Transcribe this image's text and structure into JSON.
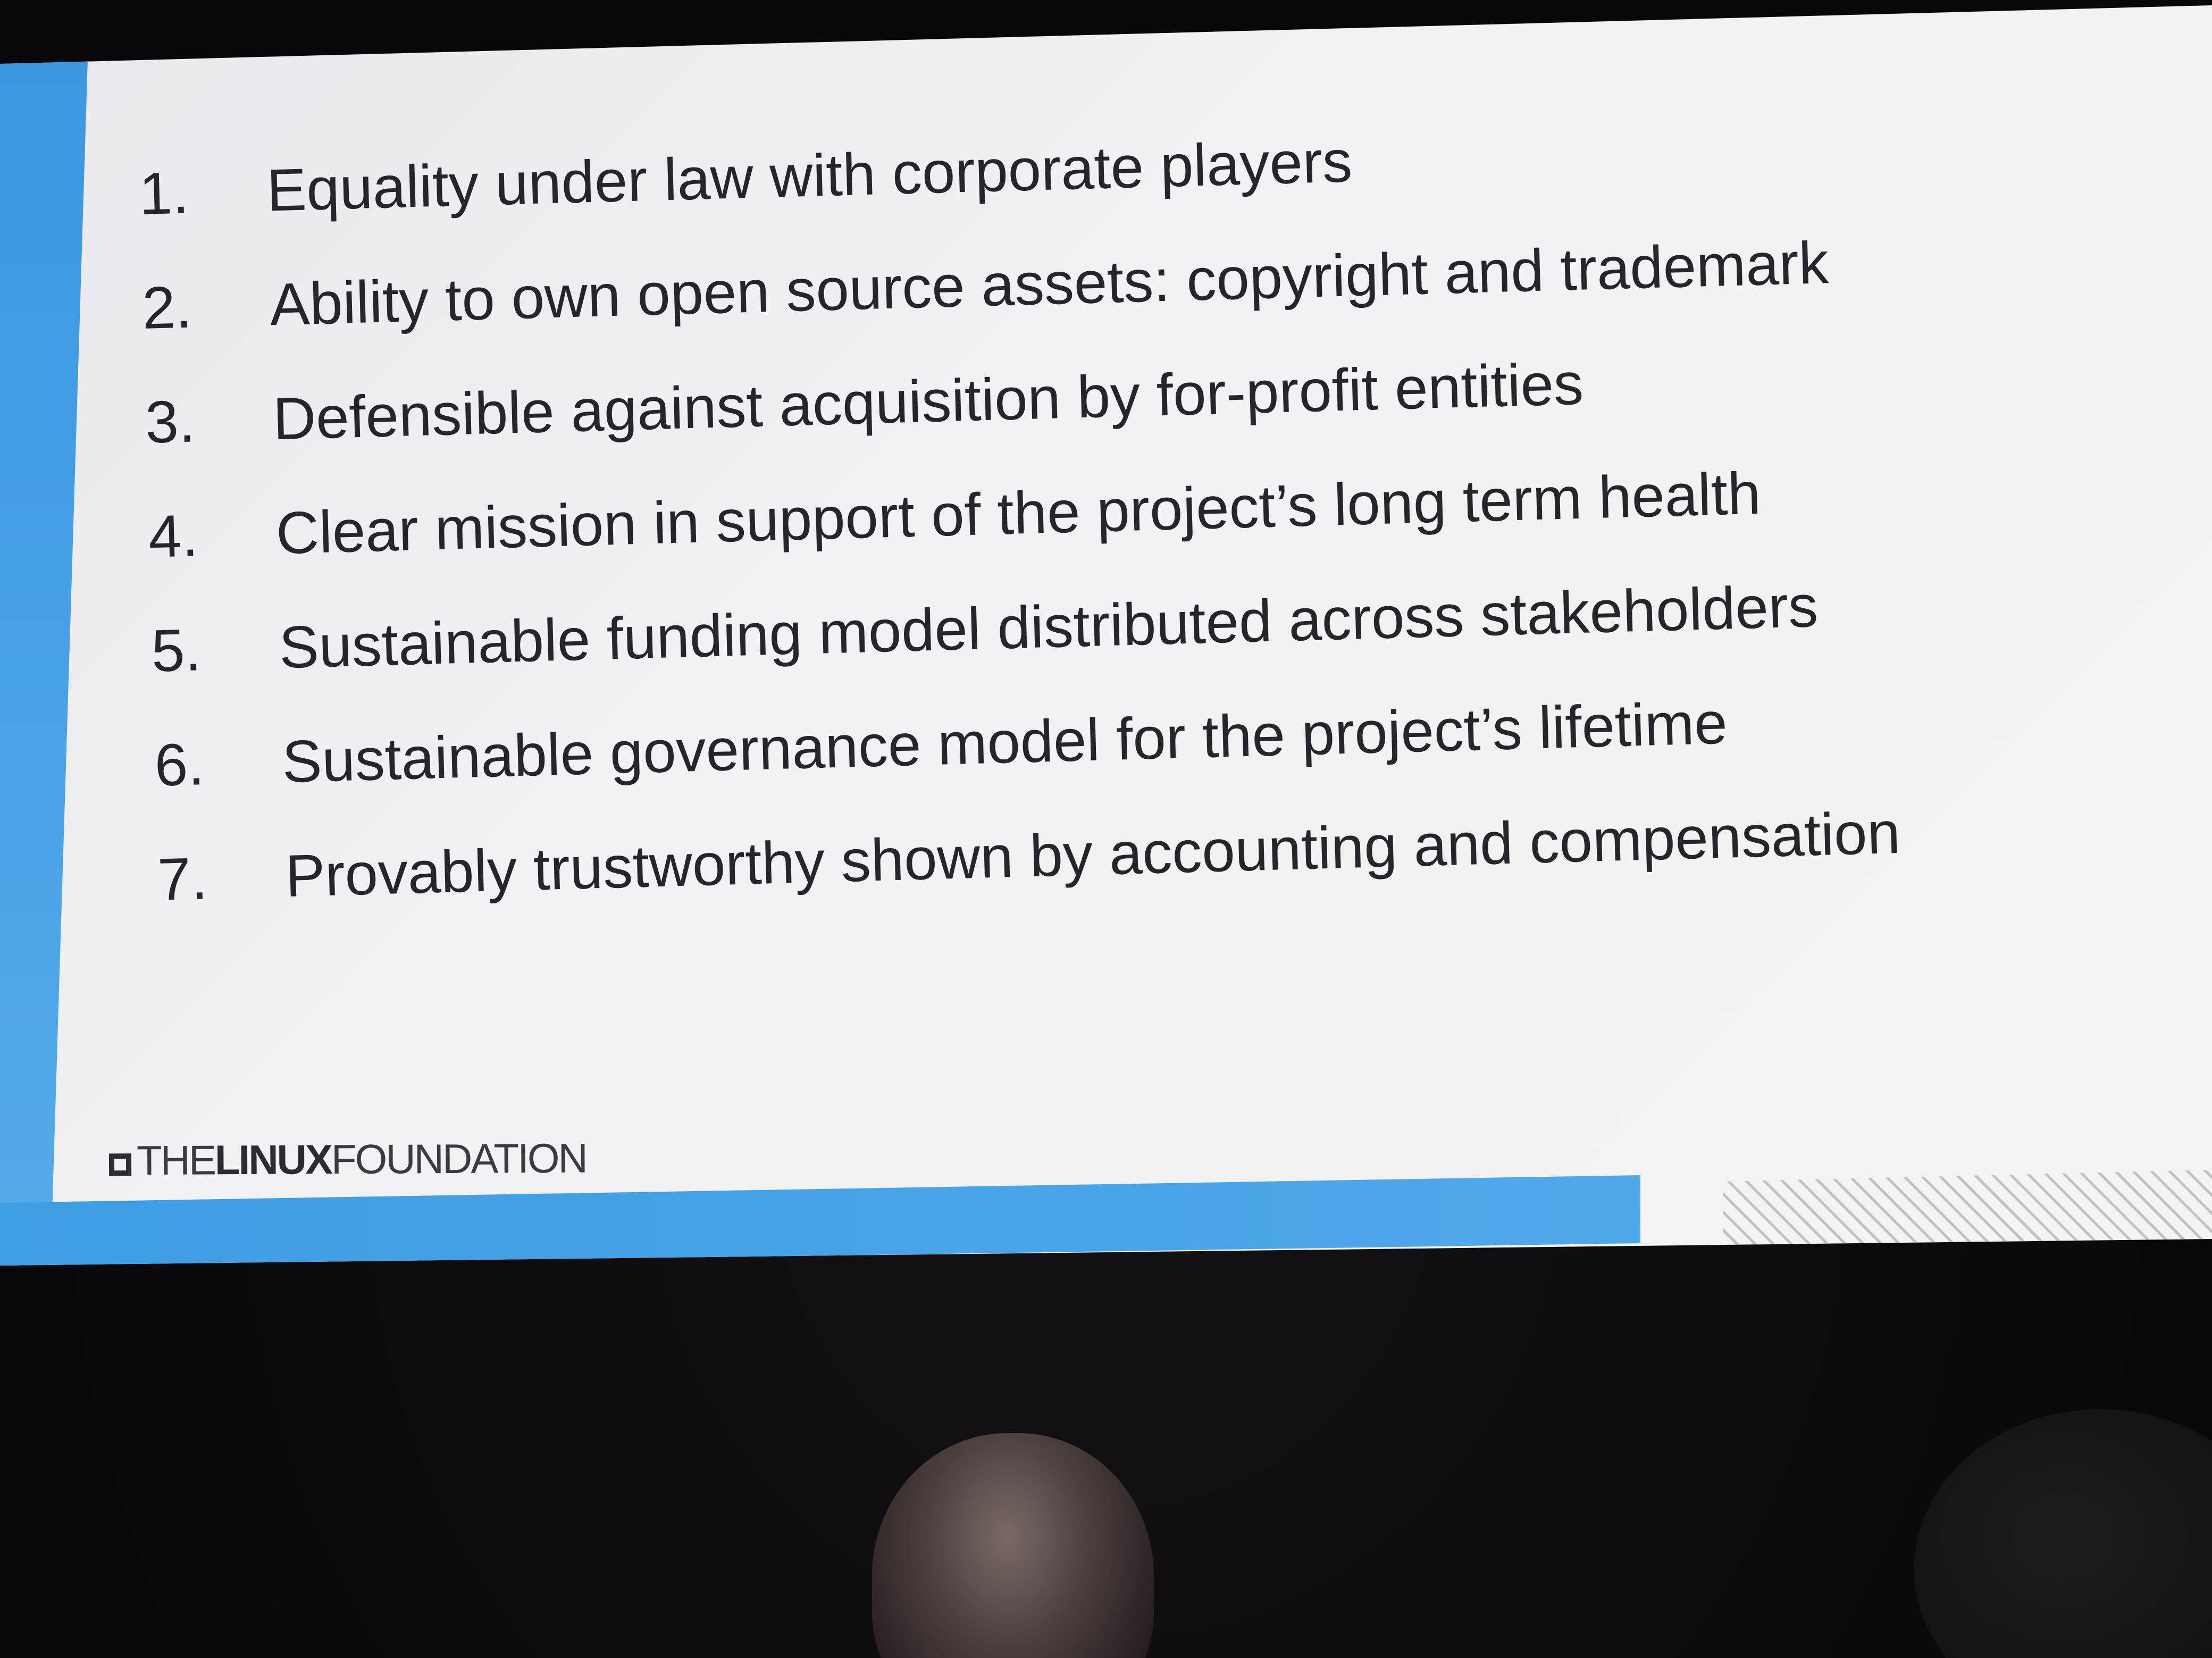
{
  "slide": {
    "items": [
      {
        "number": "1.",
        "text": "Equality under law with corporate players"
      },
      {
        "number": "2.",
        "text": "Ability to own open source assets: copyright and trademark"
      },
      {
        "number": "3.",
        "text": "Defensible against acquisition by for-profit entities"
      },
      {
        "number": "4.",
        "text": "Clear mission in support of the project’s long term health"
      },
      {
        "number": "5.",
        "text": "Sustainable funding model distributed across stakeholders"
      },
      {
        "number": "6.",
        "text": "Sustainable governance model for the project’s lifetime"
      },
      {
        "number": "7.",
        "text": "Provably trustworthy shown by accounting and compensation"
      }
    ],
    "logo": {
      "part1": "THE",
      "part2": "LINUX",
      "part3": "FOUNDATION"
    },
    "colors": {
      "accent": "#4aa3e8",
      "text": "#27252b"
    }
  }
}
